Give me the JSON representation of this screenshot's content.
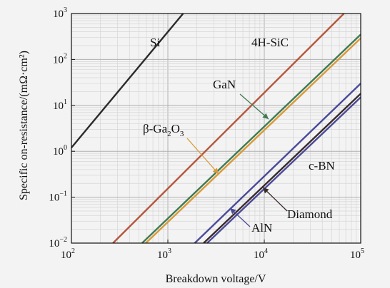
{
  "chart_data": {
    "type": "line",
    "title": "",
    "xlabel": "Breakdown voltage/V",
    "ylabel": "Specific on-resistance/(mΩ·cm²)",
    "xscale": "log",
    "yscale": "log",
    "xlim": [
      100,
      100000
    ],
    "ylim": [
      0.01,
      1000
    ],
    "grid": true,
    "x_ticks": [
      {
        "base": "10",
        "exp": "2",
        "value": 100
      },
      {
        "base": "10",
        "exp": "3",
        "value": 1000
      },
      {
        "base": "10",
        "exp": "4",
        "value": 10000
      },
      {
        "base": "10",
        "exp": "5",
        "value": 100000
      }
    ],
    "y_ticks": [
      {
        "base": "10",
        "exp": "−2",
        "value": 0.01
      },
      {
        "base": "10",
        "exp": "−1",
        "value": 0.1
      },
      {
        "base": "10",
        "exp": "0",
        "value": 1
      },
      {
        "base": "10",
        "exp": "1",
        "value": 10
      },
      {
        "base": "10",
        "exp": "2",
        "value": 100
      },
      {
        "base": "10",
        "exp": "3",
        "value": 1000
      }
    ],
    "series": [
      {
        "name": "Si",
        "color": "#2a2a2a",
        "x": [
          100,
          1440
        ],
        "y": [
          1.2,
          1000
        ]
      },
      {
        "name": "4H-SiC",
        "color": "#b5553a",
        "x": [
          270,
          67000
        ],
        "y": [
          0.01,
          1000
        ]
      },
      {
        "name": "GaN",
        "color": "#3f7a52",
        "x": [
          540,
          100000
        ],
        "y": [
          0.01,
          350
        ]
      },
      {
        "name": "β-Ga2O3",
        "color": "#d99a38",
        "x": [
          590,
          100000
        ],
        "y": [
          0.01,
          290
        ]
      },
      {
        "name": "AlN",
        "color": "#4a4a9a",
        "x": [
          1900,
          100000
        ],
        "y": [
          0.01,
          30
        ]
      },
      {
        "name": "Diamond",
        "color": "#3a2b2b",
        "x": [
          2350,
          100000
        ],
        "y": [
          0.01,
          18
        ]
      },
      {
        "name": "c-BN",
        "color": "#4a4a9a",
        "x": [
          2550,
          100000
        ],
        "y": [
          0.01,
          15
        ]
      }
    ],
    "annotations": [
      {
        "text": "Si",
        "series": "Si"
      },
      {
        "text": "4H-SiC",
        "series": "4H-SiC"
      },
      {
        "text": "GaN",
        "series": "GaN"
      },
      {
        "main": "β-Ga",
        "sub1": "2",
        "mid": "O",
        "sub2": "3",
        "series": "β-Ga2O3"
      },
      {
        "text": "c-BN",
        "series": "c-BN"
      },
      {
        "text": "Diamond",
        "series": "Diamond"
      },
      {
        "text": "AlN",
        "series": "AlN"
      }
    ]
  }
}
